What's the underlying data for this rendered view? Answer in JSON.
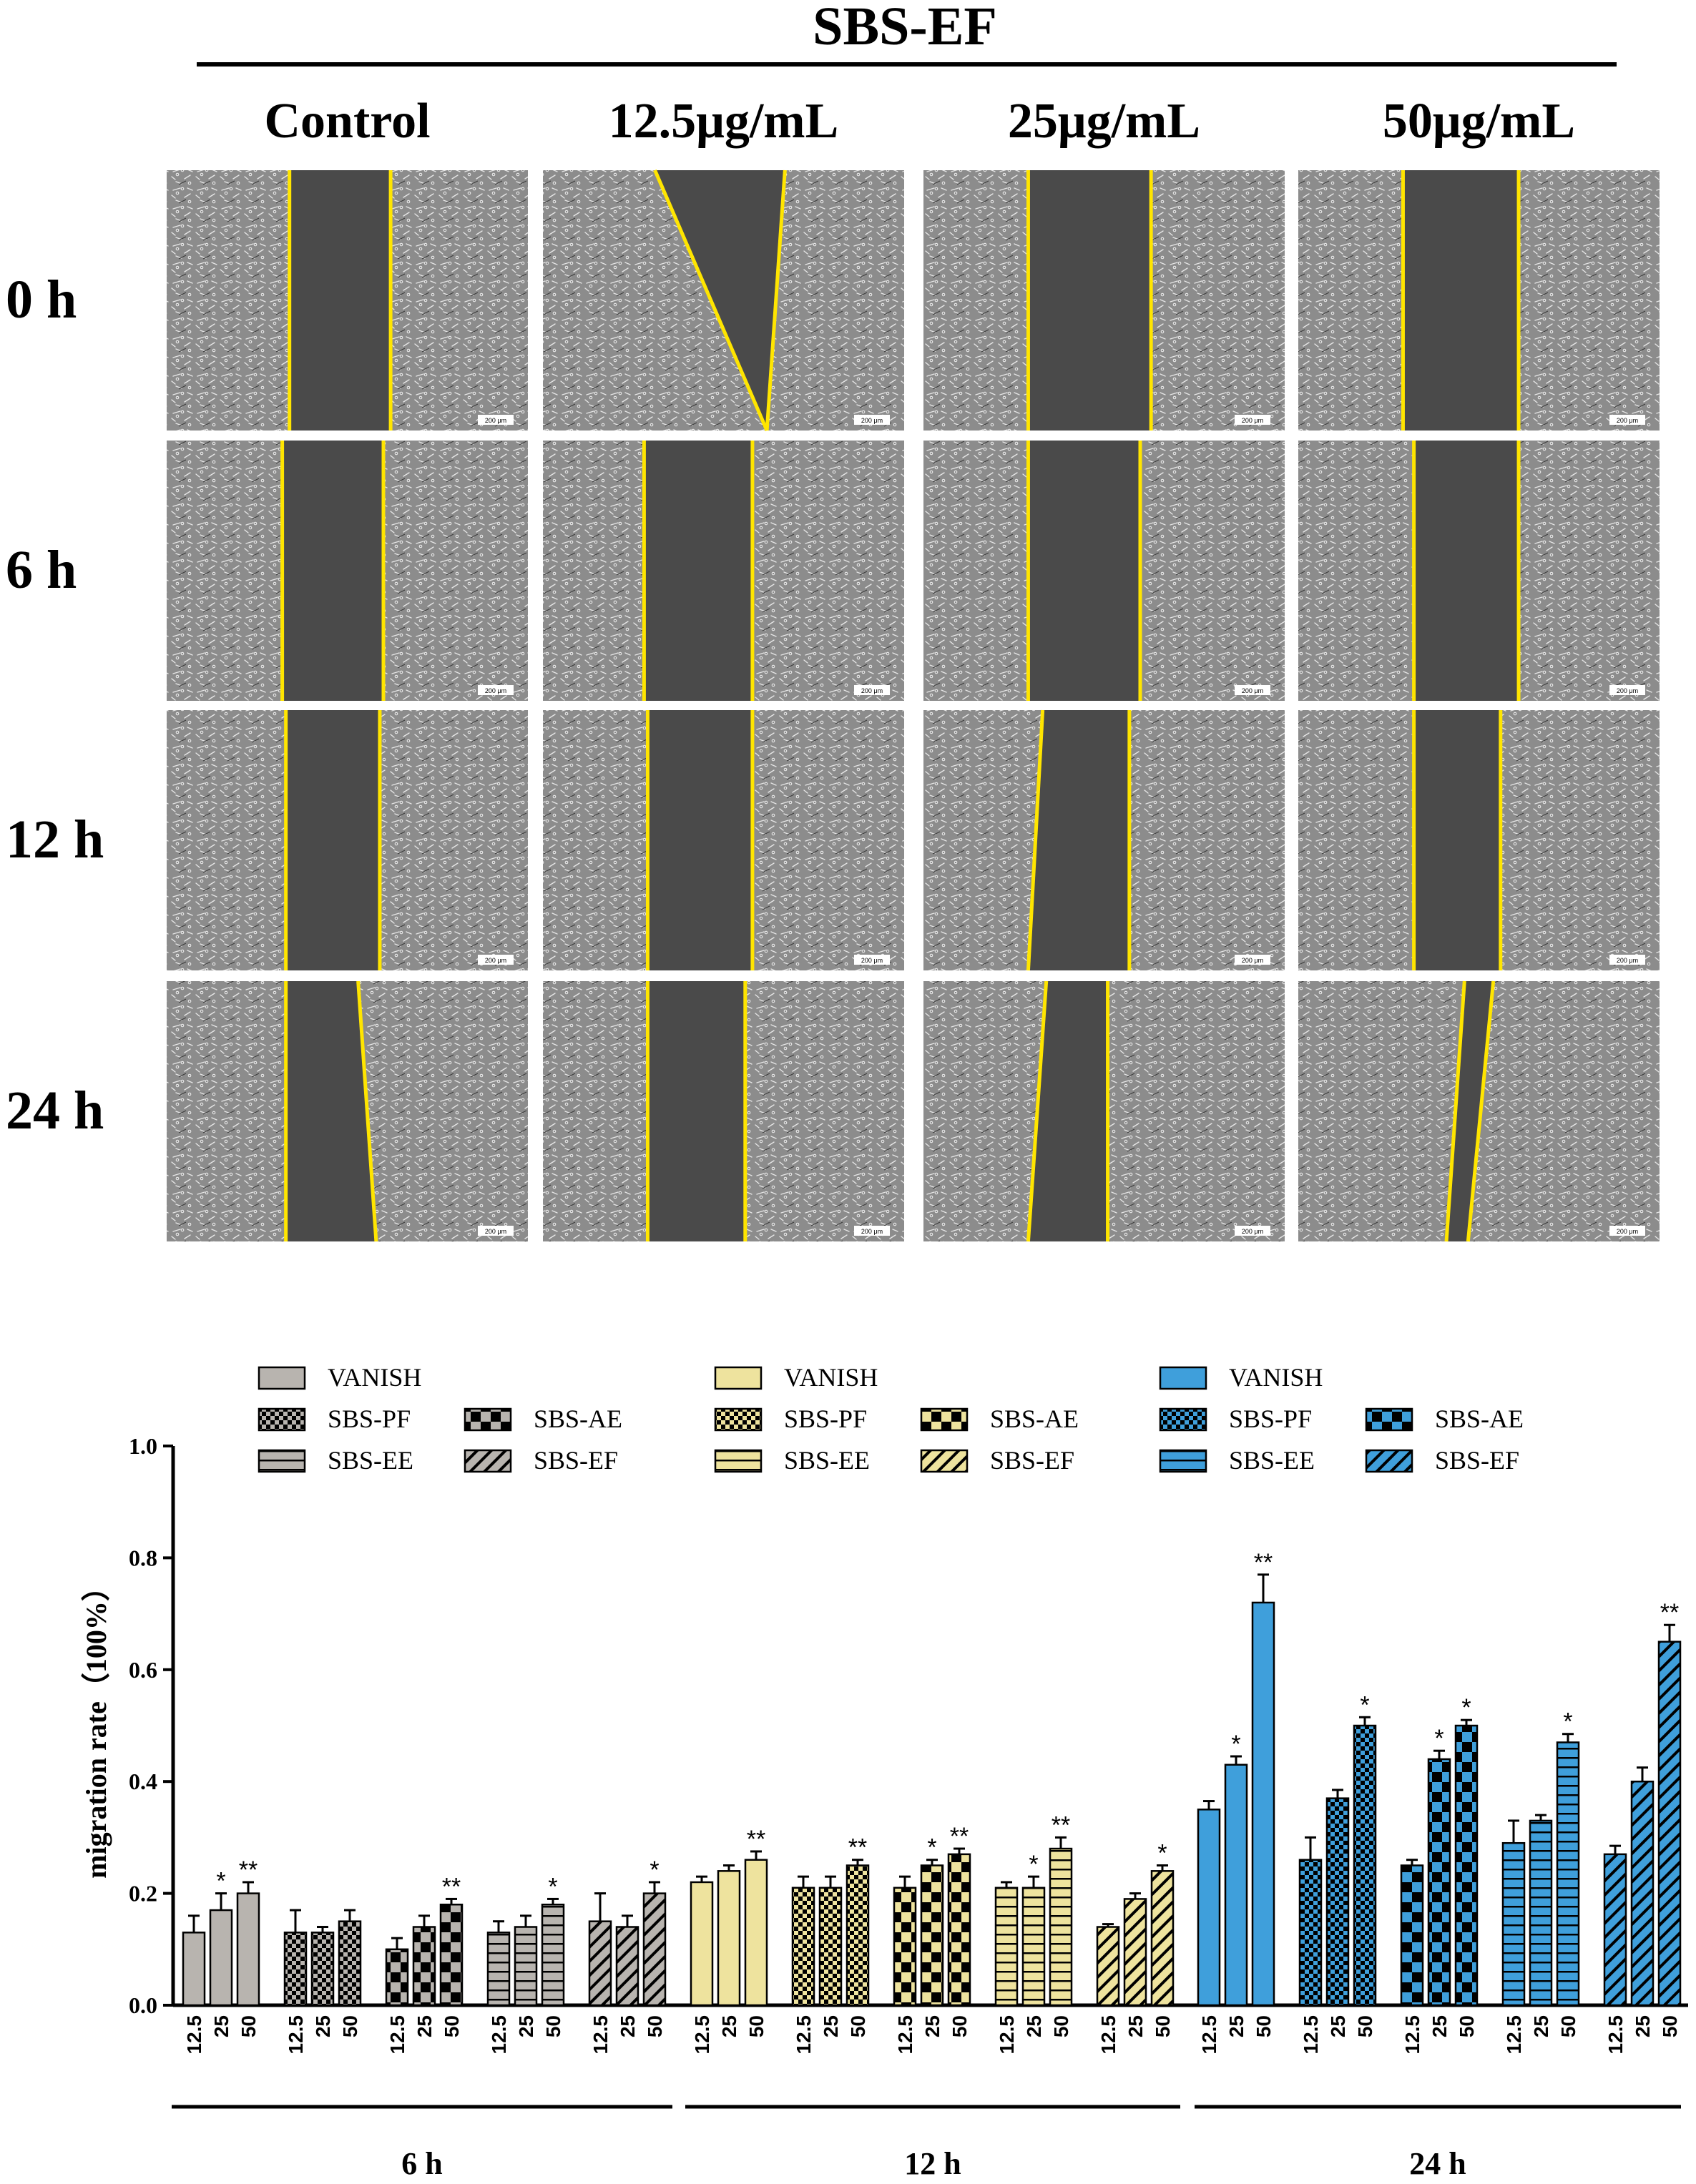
{
  "figure": {
    "treatment_title": "SBS-EF",
    "columns": [
      "Control",
      "12.5μg/mL",
      "25μg/mL",
      "50μg/mL"
    ],
    "rows": [
      "0 h",
      "6 h",
      "12 h",
      "24 h"
    ],
    "scale_bar_label": "200 μm",
    "colors": {
      "line": "#FFE500",
      "cells": "#8C8C8C",
      "gap": "#4A4A4A"
    }
  },
  "chart_data": {
    "type": "bar",
    "ylabel": "migration rate（100%）",
    "ylim": [
      0,
      1.0
    ],
    "yticks": [
      "0.0",
      "0.2",
      "0.4",
      "0.6",
      "0.8",
      "1.0"
    ],
    "ytick_values": [
      0,
      0.2,
      0.4,
      0.6,
      0.8,
      1.0
    ],
    "doses": [
      "12.5",
      "25",
      "50"
    ],
    "time_groups": [
      {
        "name": "6 h",
        "color": "#B8B4AF",
        "legend": {
          "vanish": "VANISH",
          "items": [
            "SBS-PF",
            "SBS-AE",
            "SBS-EE",
            "SBS-EF"
          ]
        },
        "series": [
          {
            "name": "VANISH",
            "pattern": "solid",
            "values": [
              0.13,
              0.17,
              0.2
            ],
            "errors": [
              0.03,
              0.03,
              0.02
            ],
            "sig": [
              "",
              "*",
              "**"
            ]
          },
          {
            "name": "SBS-PF",
            "pattern": "check",
            "values": [
              0.13,
              0.13,
              0.15
            ],
            "errors": [
              0.04,
              0.01,
              0.02
            ],
            "sig": [
              "",
              "",
              ""
            ]
          },
          {
            "name": "SBS-AE",
            "pattern": "bigcheck",
            "values": [
              0.1,
              0.14,
              0.18
            ],
            "errors": [
              0.02,
              0.02,
              0.01
            ],
            "sig": [
              "",
              "",
              "**"
            ]
          },
          {
            "name": "SBS-EE",
            "pattern": "hline",
            "values": [
              0.13,
              0.14,
              0.18
            ],
            "errors": [
              0.02,
              0.02,
              0.01
            ],
            "sig": [
              "",
              "",
              "*"
            ]
          },
          {
            "name": "SBS-EF",
            "pattern": "diag",
            "values": [
              0.15,
              0.14,
              0.2
            ],
            "errors": [
              0.05,
              0.02,
              0.02
            ],
            "sig": [
              "",
              "",
              "*"
            ]
          }
        ]
      },
      {
        "name": "12 h",
        "color": "#EEE39E",
        "legend": {
          "vanish": "VANISH",
          "items": [
            "SBS-PF",
            "SBS-AE",
            "SBS-EE",
            "SBS-EF"
          ]
        },
        "series": [
          {
            "name": "VANISH",
            "pattern": "solid",
            "values": [
              0.22,
              0.24,
              0.26
            ],
            "errors": [
              0.01,
              0.01,
              0.015
            ],
            "sig": [
              "",
              "",
              "**"
            ]
          },
          {
            "name": "SBS-PF",
            "pattern": "check",
            "values": [
              0.21,
              0.21,
              0.25
            ],
            "errors": [
              0.02,
              0.02,
              0.01
            ],
            "sig": [
              "",
              "",
              "**"
            ]
          },
          {
            "name": "SBS-AE",
            "pattern": "bigcheck",
            "values": [
              0.21,
              0.25,
              0.27
            ],
            "errors": [
              0.02,
              0.01,
              0.01
            ],
            "sig": [
              "",
              "*",
              "**"
            ]
          },
          {
            "name": "SBS-EE",
            "pattern": "hline",
            "values": [
              0.21,
              0.21,
              0.28
            ],
            "errors": [
              0.01,
              0.02,
              0.02
            ],
            "sig": [
              "",
              "*",
              "**"
            ]
          },
          {
            "name": "SBS-EF",
            "pattern": "diag",
            "values": [
              0.14,
              0.19,
              0.24
            ],
            "errors": [
              0.005,
              0.01,
              0.01
            ],
            "sig": [
              "",
              "",
              "*"
            ]
          }
        ]
      },
      {
        "name": "24 h",
        "color": "#3F9FDB",
        "legend": {
          "vanish": "VANISH",
          "items": [
            "SBS-PF",
            "SBS-AE",
            "SBS-EE",
            "SBS-EF"
          ]
        },
        "series": [
          {
            "name": "VANISH",
            "pattern": "solid",
            "values": [
              0.35,
              0.43,
              0.72
            ],
            "errors": [
              0.015,
              0.015,
              0.05
            ],
            "sig": [
              "",
              "*",
              "**"
            ]
          },
          {
            "name": "SBS-PF",
            "pattern": "check",
            "values": [
              0.26,
              0.37,
              0.5
            ],
            "errors": [
              0.04,
              0.015,
              0.015
            ],
            "sig": [
              "",
              "",
              "*"
            ]
          },
          {
            "name": "SBS-AE",
            "pattern": "bigcheck",
            "values": [
              0.25,
              0.44,
              0.5
            ],
            "errors": [
              0.01,
              0.015,
              0.01
            ],
            "sig": [
              "",
              "*",
              "*"
            ]
          },
          {
            "name": "SBS-EE",
            "pattern": "hline",
            "values": [
              0.29,
              0.33,
              0.47
            ],
            "errors": [
              0.04,
              0.01,
              0.015
            ],
            "sig": [
              "",
              "",
              "*"
            ]
          },
          {
            "name": "SBS-EF",
            "pattern": "diag",
            "values": [
              0.27,
              0.4,
              0.65
            ],
            "errors": [
              0.015,
              0.025,
              0.03
            ],
            "sig": [
              "",
              "",
              "**"
            ]
          }
        ]
      }
    ]
  }
}
